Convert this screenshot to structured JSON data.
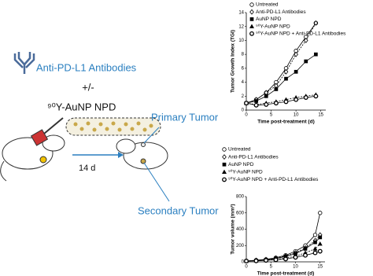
{
  "diagram": {
    "antibody_label": "Anti-PD-L1 Antibodies",
    "plus_minus": "+/-",
    "particle_label": "⁹⁰Y-AuNP NPD",
    "primary_label": "Primary Tumor",
    "interval_label": "14 d",
    "secondary_label": "Secondary Tumor"
  },
  "chart_data": [
    {
      "type": "line",
      "x_label": "Time post-treatment (d)",
      "y_label": "Tumor Growth Index (TGI)",
      "x": [
        0,
        2,
        4,
        6,
        8,
        10,
        12,
        14
      ],
      "xlim": [
        0,
        16
      ],
      "xticks": [
        0,
        5,
        10,
        15
      ],
      "ylim": [
        0,
        14
      ],
      "yticks": [
        0,
        2,
        4,
        6,
        8,
        10,
        12,
        14
      ],
      "series": [
        {
          "name": "Untreated",
          "color": "#000000",
          "marker": "circle-open",
          "values": [
            1,
            1.5,
            2.5,
            4,
            6,
            8.5,
            10.5,
            12.5
          ]
        },
        {
          "name": "Anti-PD-L1 Antibodies",
          "color": "#000000",
          "marker": "diamond-open",
          "values": [
            1,
            1.5,
            2.5,
            3.5,
            5.5,
            8,
            10,
            12.5
          ]
        },
        {
          "name": "AuNP NPD",
          "color": "#000000",
          "marker": "square",
          "values": [
            1,
            1.3,
            2,
            3,
            4.5,
            5.5,
            7,
            8
          ]
        },
        {
          "name": "⁹⁰Y-AuNP  NPD",
          "color": "#000000",
          "marker": "triangle",
          "values": [
            1,
            0.8,
            1,
            1.2,
            1.5,
            1.8,
            2,
            2.2
          ]
        },
        {
          "name": "⁹⁰Y-AuNP  NPD + Anti-PD-L1 Antibodies",
          "color": "#000000",
          "marker": "circle-cross",
          "values": [
            1,
            0.7,
            0.8,
            1,
            1.2,
            1.5,
            1.8,
            2
          ]
        }
      ]
    },
    {
      "type": "line",
      "x_label": "Time post-treatment (d)",
      "y_label": "Tumor volume (mm³)",
      "x": [
        0,
        2,
        4,
        6,
        8,
        10,
        12,
        14,
        15
      ],
      "xlim": [
        0,
        16
      ],
      "xticks": [
        0,
        5,
        10,
        15
      ],
      "ylim": [
        0,
        800
      ],
      "yticks": [
        0,
        200,
        400,
        600,
        800
      ],
      "series": [
        {
          "name": "Untreated",
          "color": "#000000",
          "marker": "circle-open",
          "values": [
            10,
            20,
            30,
            50,
            80,
            130,
            200,
            330,
            600
          ]
        },
        {
          "name": "Anti-PD-L1 Antibodies",
          "color": "#000000",
          "marker": "diamond-open",
          "values": [
            10,
            20,
            30,
            45,
            70,
            110,
            170,
            260,
            330
          ]
        },
        {
          "name": "AuNP  NPD",
          "color": "#000000",
          "marker": "square",
          "values": [
            10,
            15,
            25,
            40,
            65,
            100,
            160,
            240,
            300
          ]
        },
        {
          "name": "⁹⁰Y-AuNP  NPD",
          "color": "#000000",
          "marker": "triangle",
          "values": [
            10,
            15,
            20,
            30,
            45,
            70,
            110,
            160,
            220
          ]
        },
        {
          "name": "⁹⁰Y-AuNP  NPD + Anti-PD-L1 Antibodies",
          "color": "#000000",
          "marker": "circle-cross",
          "values": [
            10,
            12,
            18,
            25,
            35,
            55,
            80,
            110,
            130
          ]
        }
      ]
    }
  ]
}
